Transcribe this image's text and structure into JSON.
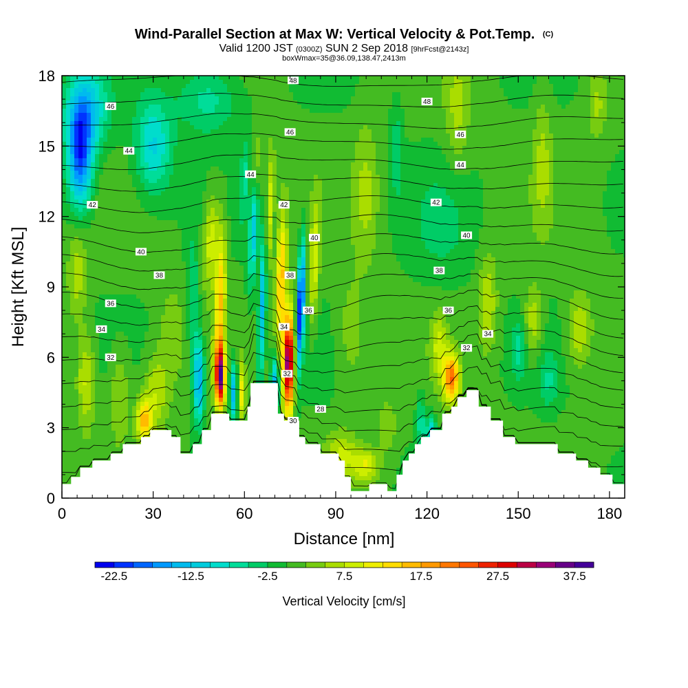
{
  "header": {
    "title": "Wind-Parallel Section at Max W: Vertical Velocity & Pot.Temp.",
    "copyright": "(C)",
    "valid_prefix": "Valid 1200 JST",
    "utc_time": "(0300Z)",
    "valid_date": "SUN 2 Sep 2018",
    "forecast": "[9hrFcst@2143z]",
    "box_info": "boxWmax=35@36.09,138.47,2413m"
  },
  "chart_data": {
    "type": "heatmap",
    "xlabel": "Distance [nm]",
    "ylabel": "Height [Kft MSL]",
    "xlim": [
      0,
      185
    ],
    "ylim": [
      0,
      18
    ],
    "xticks": [
      0,
      30,
      60,
      90,
      120,
      150,
      180
    ],
    "yticks": [
      0,
      3,
      6,
      9,
      12,
      15,
      18
    ],
    "colorbar": {
      "label": "Vertical Velocity [cm/s]",
      "min": -25,
      "max": 40,
      "step": 2.5,
      "tick_labels": [
        "-22.5",
        "-12.5",
        "-2.5",
        "7.5",
        "17.5",
        "27.5",
        "37.5"
      ],
      "colors": [
        "#0000ee",
        "#0033ff",
        "#0066ff",
        "#0099ff",
        "#00bbee",
        "#00ccdd",
        "#00ddcc",
        "#00dd99",
        "#00cc66",
        "#11bb33",
        "#44bb22",
        "#77cc11",
        "#aadd00",
        "#ccee00",
        "#eeee00",
        "#ffdd00",
        "#ffbb00",
        "#ff9900",
        "#ff7700",
        "#ff5500",
        "#ee2200",
        "#dd0000",
        "#bb0044",
        "#990077",
        "#660088",
        "#440099"
      ]
    },
    "terrain_height_kft": [
      [
        0,
        0.6
      ],
      [
        3,
        0.6
      ],
      [
        3,
        0.9
      ],
      [
        6,
        0.9
      ],
      [
        6,
        1.3
      ],
      [
        10,
        1.3
      ],
      [
        10,
        1.6
      ],
      [
        16,
        1.6
      ],
      [
        16,
        1.9
      ],
      [
        20,
        1.9
      ],
      [
        20,
        2.3
      ],
      [
        26,
        2.3
      ],
      [
        26,
        2.6
      ],
      [
        29,
        2.6
      ],
      [
        29,
        2.9
      ],
      [
        36,
        2.9
      ],
      [
        36,
        2.6
      ],
      [
        39,
        2.6
      ],
      [
        39,
        1.9
      ],
      [
        43,
        1.9
      ],
      [
        43,
        2.3
      ],
      [
        46,
        2.3
      ],
      [
        46,
        2.9
      ],
      [
        49,
        2.9
      ],
      [
        49,
        3.6
      ],
      [
        55,
        3.6
      ],
      [
        55,
        3.3
      ],
      [
        61,
        3.3
      ],
      [
        61,
        3.9
      ],
      [
        62,
        3.9
      ],
      [
        62,
        4.9
      ],
      [
        71,
        4.9
      ],
      [
        71,
        3.6
      ],
      [
        73,
        3.6
      ],
      [
        73,
        3.3
      ],
      [
        78,
        3.3
      ],
      [
        78,
        2.6
      ],
      [
        80,
        2.6
      ],
      [
        80,
        2.3
      ],
      [
        85,
        2.3
      ],
      [
        85,
        1.9
      ],
      [
        91,
        1.9
      ],
      [
        91,
        1.6
      ],
      [
        93,
        1.6
      ],
      [
        93,
        0.9
      ],
      [
        95,
        0.9
      ],
      [
        95,
        0.3
      ],
      [
        101,
        0.3
      ],
      [
        101,
        0.6
      ],
      [
        107,
        0.6
      ],
      [
        107,
        0.3
      ],
      [
        110,
        0.3
      ],
      [
        110,
        1.0
      ],
      [
        112,
        1.0
      ],
      [
        112,
        1.6
      ],
      [
        114,
        1.6
      ],
      [
        114,
        1.9
      ],
      [
        116,
        1.9
      ],
      [
        116,
        2.3
      ],
      [
        118,
        2.3
      ],
      [
        118,
        2.6
      ],
      [
        121,
        2.6
      ],
      [
        121,
        2.9
      ],
      [
        125,
        2.9
      ],
      [
        125,
        3.6
      ],
      [
        128,
        3.6
      ],
      [
        128,
        3.9
      ],
      [
        130,
        3.9
      ],
      [
        130,
        4.3
      ],
      [
        133,
        4.3
      ],
      [
        133,
        4.6
      ],
      [
        137,
        4.6
      ],
      [
        137,
        3.9
      ],
      [
        141,
        3.9
      ],
      [
        141,
        3.3
      ],
      [
        145,
        3.3
      ],
      [
        145,
        2.6
      ],
      [
        149,
        2.6
      ],
      [
        149,
        2.3
      ],
      [
        163,
        2.3
      ],
      [
        163,
        1.9
      ],
      [
        169,
        1.9
      ],
      [
        169,
        1.6
      ],
      [
        173,
        1.6
      ],
      [
        173,
        1.3
      ],
      [
        177,
        1.3
      ],
      [
        177,
        1.0
      ],
      [
        181,
        1.0
      ],
      [
        181,
        0.6
      ],
      [
        185,
        0.6
      ]
    ],
    "theta_contours": [
      {
        "level": 28,
        "label_x": 85,
        "label_y": 3.8
      },
      {
        "level": 30,
        "label_x": 76,
        "label_y": 3.3
      },
      {
        "level": 32,
        "label_x": 16,
        "label_y": 6.0
      },
      {
        "level": 32,
        "label_x": 74,
        "label_y": 5.3
      },
      {
        "level": 32,
        "label_x": 133,
        "label_y": 6.4
      },
      {
        "level": 34,
        "label_x": 13,
        "label_y": 7.2
      },
      {
        "level": 34,
        "label_x": 73,
        "label_y": 7.3
      },
      {
        "level": 34,
        "label_x": 140,
        "label_y": 7.0
      },
      {
        "level": 36,
        "label_x": 16,
        "label_y": 8.3
      },
      {
        "level": 36,
        "label_x": 81,
        "label_y": 8.0
      },
      {
        "level": 36,
        "label_x": 127,
        "label_y": 8.0
      },
      {
        "level": 38,
        "label_x": 32,
        "label_y": 9.5
      },
      {
        "level": 38,
        "label_x": 75,
        "label_y": 9.5
      },
      {
        "level": 38,
        "label_x": 124,
        "label_y": 9.7
      },
      {
        "level": 40,
        "label_x": 26,
        "label_y": 10.5
      },
      {
        "level": 40,
        "label_x": 83,
        "label_y": 11.1
      },
      {
        "level": 40,
        "label_x": 133,
        "label_y": 11.2
      },
      {
        "level": 42,
        "label_x": 10,
        "label_y": 12.5
      },
      {
        "level": 42,
        "label_x": 73,
        "label_y": 12.5
      },
      {
        "level": 42,
        "label_x": 123,
        "label_y": 12.6
      },
      {
        "level": 44,
        "label_x": 22,
        "label_y": 14.8
      },
      {
        "level": 44,
        "label_x": 62,
        "label_y": 13.8
      },
      {
        "level": 44,
        "label_x": 131,
        "label_y": 14.2
      },
      {
        "level": 46,
        "label_x": 16,
        "label_y": 16.7
      },
      {
        "level": 46,
        "label_x": 75,
        "label_y": 15.6
      },
      {
        "level": 46,
        "label_x": 131,
        "label_y": 15.5
      },
      {
        "level": 48,
        "label_x": 76,
        "label_y": 17.8
      },
      {
        "level": 48,
        "label_x": 120,
        "label_y": 16.9
      }
    ],
    "velocity_features": [
      {
        "x": 6,
        "y": 14.5,
        "sx": 4,
        "sy": 2.2,
        "w": -20,
        "tilt": 0
      },
      {
        "x": 8,
        "y": 16.5,
        "sx": 7,
        "sy": 1.8,
        "w": -12,
        "tilt": 0
      },
      {
        "x": 30,
        "y": 15.0,
        "sx": 6,
        "sy": 2.0,
        "w": -11,
        "tilt": 0
      },
      {
        "x": 48,
        "y": 17.0,
        "sx": 10,
        "sy": 1.5,
        "w": -7,
        "tilt": 0
      },
      {
        "x": 52,
        "y": 5.2,
        "sx": 1.5,
        "sy": 1.3,
        "w": 35,
        "tilt": 0
      },
      {
        "x": 52,
        "y": 8.5,
        "sx": 1.8,
        "sy": 3.0,
        "w": 14,
        "tilt": 0.22
      },
      {
        "x": 49,
        "y": 11.0,
        "sx": 2.5,
        "sy": 2.0,
        "w": 9,
        "tilt": 0.3
      },
      {
        "x": 45,
        "y": 5.0,
        "sx": 1.8,
        "sy": 1.8,
        "w": -16,
        "tilt": 0
      },
      {
        "x": 43,
        "y": 8.5,
        "sx": 2.0,
        "sy": 2.5,
        "w": -6,
        "tilt": 0
      },
      {
        "x": 56.5,
        "y": 4.5,
        "sx": 1.3,
        "sy": 1.3,
        "w": -15,
        "tilt": 0
      },
      {
        "x": 59,
        "y": 4.5,
        "sx": 1.2,
        "sy": 1.2,
        "w": 11,
        "tilt": 0
      },
      {
        "x": 74.5,
        "y": 5.8,
        "sx": 1.8,
        "sy": 2.1,
        "w": 36,
        "tilt": 0.05
      },
      {
        "x": 72,
        "y": 9.3,
        "sx": 1.6,
        "sy": 2.8,
        "w": 16,
        "tilt": 0.25
      },
      {
        "x": 68,
        "y": 12.0,
        "sx": 1.4,
        "sy": 2.8,
        "w": 10,
        "tilt": 0.3
      },
      {
        "x": 64,
        "y": 14.0,
        "sx": 2.0,
        "sy": 1.8,
        "w": 6,
        "tilt": 0.3
      },
      {
        "x": 78.5,
        "y": 8.2,
        "sx": 1.2,
        "sy": 2.5,
        "w": -25,
        "tilt": 0.25
      },
      {
        "x": 70,
        "y": 4.8,
        "sx": 1.3,
        "sy": 1.3,
        "w": -15,
        "tilt": 0
      },
      {
        "x": 66,
        "y": 8.5,
        "sx": 1.2,
        "sy": 3.5,
        "w": -15,
        "tilt": 0.25
      },
      {
        "x": 63,
        "y": 11.5,
        "sx": 1.5,
        "sy": 2.5,
        "w": -12,
        "tilt": 0.3
      },
      {
        "x": 60,
        "y": 13.5,
        "sx": 1.5,
        "sy": 1.8,
        "w": -6,
        "tilt": 0.3
      },
      {
        "x": 83,
        "y": 10.0,
        "sx": 1.5,
        "sy": 2.5,
        "w": 9,
        "tilt": 0.2
      },
      {
        "x": 128,
        "y": 5.1,
        "sx": 2.5,
        "sy": 1.0,
        "w": 21,
        "tilt": 0
      },
      {
        "x": 124,
        "y": 6.4,
        "sx": 2.5,
        "sy": 1.4,
        "w": 7,
        "tilt": 0
      },
      {
        "x": 121.5,
        "y": 2.4,
        "sx": 1.5,
        "sy": 0.9,
        "w": -16,
        "tilt": 0
      },
      {
        "x": 118,
        "y": 3.2,
        "sx": 1.5,
        "sy": 1.2,
        "w": -7,
        "tilt": 0
      },
      {
        "x": 27,
        "y": 3.3,
        "sx": 2.5,
        "sy": 0.9,
        "w": 15,
        "tilt": 0
      },
      {
        "x": 31,
        "y": 4.5,
        "sx": 4.0,
        "sy": 1.6,
        "w": 7,
        "tilt": 0
      },
      {
        "x": 19,
        "y": 4.5,
        "sx": 3.5,
        "sy": 2.0,
        "w": 5,
        "tilt": 0
      },
      {
        "x": 8,
        "y": 5.0,
        "sx": 3.0,
        "sy": 2.0,
        "w": 8,
        "tilt": 0
      },
      {
        "x": 5,
        "y": 9.5,
        "sx": 3.0,
        "sy": 2.0,
        "w": 6,
        "tilt": 0
      },
      {
        "x": 92,
        "y": 1.8,
        "sx": 5.0,
        "sy": 1.0,
        "w": 7,
        "tilt": 0
      },
      {
        "x": 100,
        "y": 1.4,
        "sx": 4.0,
        "sy": 0.7,
        "w": 9,
        "tilt": 0
      },
      {
        "x": 107,
        "y": 3.0,
        "sx": 3.0,
        "sy": 1.2,
        "w": 4,
        "tilt": 0
      },
      {
        "x": 36,
        "y": 7.0,
        "sx": 4.0,
        "sy": 2.0,
        "w": 4,
        "tilt": 0
      },
      {
        "x": 140,
        "y": 8.3,
        "sx": 3.0,
        "sy": 2.0,
        "w": 7,
        "tilt": 0
      },
      {
        "x": 155,
        "y": 7.5,
        "sx": 3.0,
        "sy": 1.5,
        "w": 7,
        "tilt": 0
      },
      {
        "x": 170,
        "y": 7.2,
        "sx": 4.0,
        "sy": 1.6,
        "w": 7,
        "tilt": 0
      },
      {
        "x": 150,
        "y": 6.3,
        "sx": 2.5,
        "sy": 1.2,
        "w": -6,
        "tilt": 0
      },
      {
        "x": 160,
        "y": 5.0,
        "sx": 3.0,
        "sy": 1.2,
        "w": -5,
        "tilt": 0
      },
      {
        "x": 100,
        "y": 13.0,
        "sx": 4.0,
        "sy": 3.0,
        "w": 5,
        "tilt": 0
      },
      {
        "x": 110,
        "y": 14.8,
        "sx": 2.0,
        "sy": 2.0,
        "w": -5,
        "tilt": 0
      },
      {
        "x": 130,
        "y": 16.5,
        "sx": 4.0,
        "sy": 2.5,
        "w": 5,
        "tilt": 0
      },
      {
        "x": 158,
        "y": 14.5,
        "sx": 3.0,
        "sy": 3.0,
        "w": 5,
        "tilt": 0
      },
      {
        "x": 176,
        "y": 16.8,
        "sx": 3.0,
        "sy": 1.5,
        "w": 5,
        "tilt": 0
      },
      {
        "x": 125,
        "y": 11.5,
        "sx": 10.0,
        "sy": 2.5,
        "w": -3,
        "tilt": 0
      },
      {
        "x": 95,
        "y": 7.0,
        "sx": 5.0,
        "sy": 2.5,
        "w": 4,
        "tilt": 0
      }
    ]
  }
}
